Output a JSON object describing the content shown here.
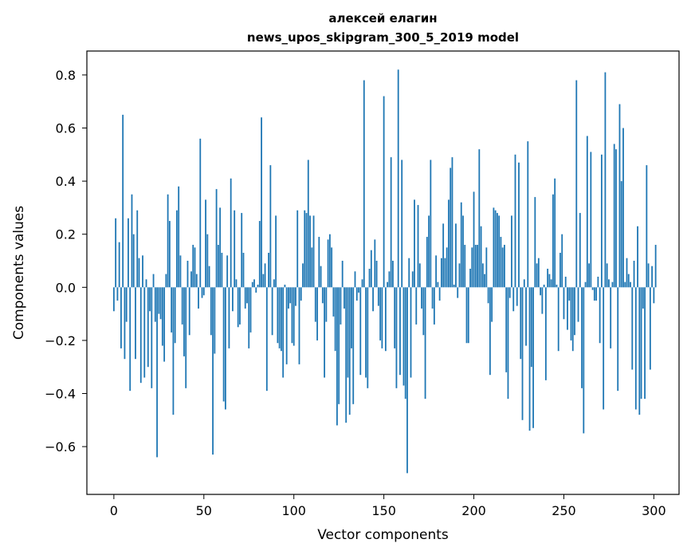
{
  "chart_data": {
    "type": "bar",
    "title": "алексей елагин",
    "subtitle": "news_upos_skipgram_300_5_2019 model",
    "xlabel": "Vector components",
    "ylabel": "Components values",
    "xlim": [
      -15,
      314
    ],
    "ylim": [
      -0.78,
      0.89
    ],
    "xticks": [
      0,
      50,
      100,
      150,
      200,
      250,
      300
    ],
    "xtick_labels": [
      "0",
      "50",
      "100",
      "150",
      "200",
      "250",
      "300"
    ],
    "yticks": [
      -0.6,
      -0.4,
      -0.2,
      0.0,
      0.2,
      0.4,
      0.6,
      0.8
    ],
    "ytick_labels": [
      "−0.6",
      "−0.4",
      "−0.2",
      "0.0",
      "0.2",
      "0.4",
      "0.6",
      "0.8"
    ],
    "bar_color": "#1f77b4",
    "grid": false,
    "values": [
      -0.09,
      0.26,
      -0.05,
      0.17,
      -0.23,
      0.65,
      -0.27,
      -0.13,
      0.26,
      -0.39,
      0.35,
      0.2,
      -0.27,
      0.29,
      0.11,
      -0.36,
      0.12,
      -0.34,
      0.03,
      -0.3,
      -0.09,
      -0.38,
      0.05,
      -0.13,
      -0.64,
      -0.1,
      -0.12,
      -0.22,
      -0.28,
      0.05,
      0.35,
      0.25,
      -0.17,
      -0.48,
      -0.21,
      0.29,
      0.38,
      0.12,
      -0.14,
      -0.26,
      -0.38,
      0.1,
      -0.18,
      0.06,
      0.16,
      0.15,
      0.05,
      -0.08,
      0.56,
      -0.04,
      -0.03,
      0.33,
      0.2,
      0.08,
      -0.18,
      -0.63,
      -0.25,
      0.37,
      0.16,
      0.3,
      0.13,
      -0.43,
      -0.46,
      0.12,
      -0.23,
      0.41,
      -0.09,
      0.29,
      0.03,
      -0.15,
      -0.14,
      0.28,
      0.13,
      -0.08,
      -0.06,
      -0.23,
      -0.17,
      0.02,
      0.03,
      -0.02,
      0.01,
      0.25,
      0.64,
      0.05,
      0.09,
      -0.39,
      0.13,
      0.46,
      -0.18,
      0.03,
      0.27,
      -0.21,
      -0.23,
      -0.24,
      -0.34,
      0.01,
      -0.29,
      -0.08,
      -0.06,
      -0.21,
      -0.22,
      -0.07,
      0.29,
      -0.29,
      -0.05,
      0.09,
      0.29,
      0.28,
      0.48,
      0.27,
      0.15,
      0.27,
      -0.13,
      -0.2,
      0.19,
      0.08,
      -0.06,
      -0.34,
      -0.13,
      0.18,
      0.2,
      0.15,
      -0.11,
      -0.24,
      -0.52,
      -0.44,
      -0.14,
      0.1,
      -0.08,
      -0.51,
      -0.34,
      -0.48,
      -0.23,
      -0.44,
      0.06,
      -0.05,
      -0.02,
      -0.33,
      0.03,
      0.78,
      -0.34,
      -0.38,
      0.07,
      0.14,
      -0.09,
      0.18,
      0.1,
      -0.07,
      -0.2,
      -0.23,
      0.72,
      -0.24,
      0.02,
      0.06,
      0.49,
      0.1,
      -0.23,
      -0.38,
      0.82,
      -0.33,
      0.48,
      -0.37,
      -0.42,
      -0.7,
      0.11,
      -0.34,
      0.06,
      0.33,
      -0.14,
      0.31,
      0.09,
      -0.08,
      -0.18,
      -0.42,
      0.19,
      0.27,
      0.48,
      -0.08,
      -0.14,
      0.12,
      0.02,
      -0.05,
      0.11,
      0.24,
      0.11,
      0.15,
      0.33,
      0.45,
      0.49,
      0.01,
      0.24,
      -0.04,
      0.09,
      0.32,
      0.27,
      0.16,
      -0.21,
      -0.21,
      0.07,
      0.15,
      0.36,
      0.16,
      0.16,
      0.52,
      0.23,
      0.09,
      0.05,
      0.15,
      -0.06,
      -0.33,
      -0.13,
      0.3,
      0.29,
      0.28,
      0.27,
      0.19,
      0.15,
      0.16,
      -0.32,
      -0.42,
      -0.04,
      0.27,
      -0.09,
      0.5,
      -0.07,
      0.47,
      -0.27,
      -0.5,
      0.03,
      -0.22,
      0.55,
      -0.54,
      -0.3,
      -0.53,
      0.34,
      0.09,
      0.11,
      -0.03,
      -0.1,
      0.01,
      -0.35,
      0.07,
      0.05,
      0.03,
      0.35,
      0.41,
      0.01,
      -0.24,
      0.13,
      0.2,
      -0.12,
      0.04,
      -0.16,
      -0.05,
      -0.2,
      -0.24,
      -0.18,
      0.78,
      -0.13,
      0.28,
      -0.38,
      -0.55,
      0.02,
      0.57,
      0.09,
      0.51,
      -0.01,
      -0.05,
      -0.05,
      0.04,
      -0.21,
      0.5,
      -0.46,
      0.81,
      0.09,
      0.03,
      -0.23,
      0.02,
      0.54,
      0.52,
      -0.39,
      0.69,
      0.4,
      0.6,
      0.02,
      0.11,
      0.05,
      0.02,
      -0.31,
      0.1,
      -0.46,
      0.23,
      -0.48,
      -0.42,
      -0.08,
      -0.42,
      0.46,
      0.09,
      -0.31,
      0.08,
      -0.06,
      0.16
    ]
  }
}
